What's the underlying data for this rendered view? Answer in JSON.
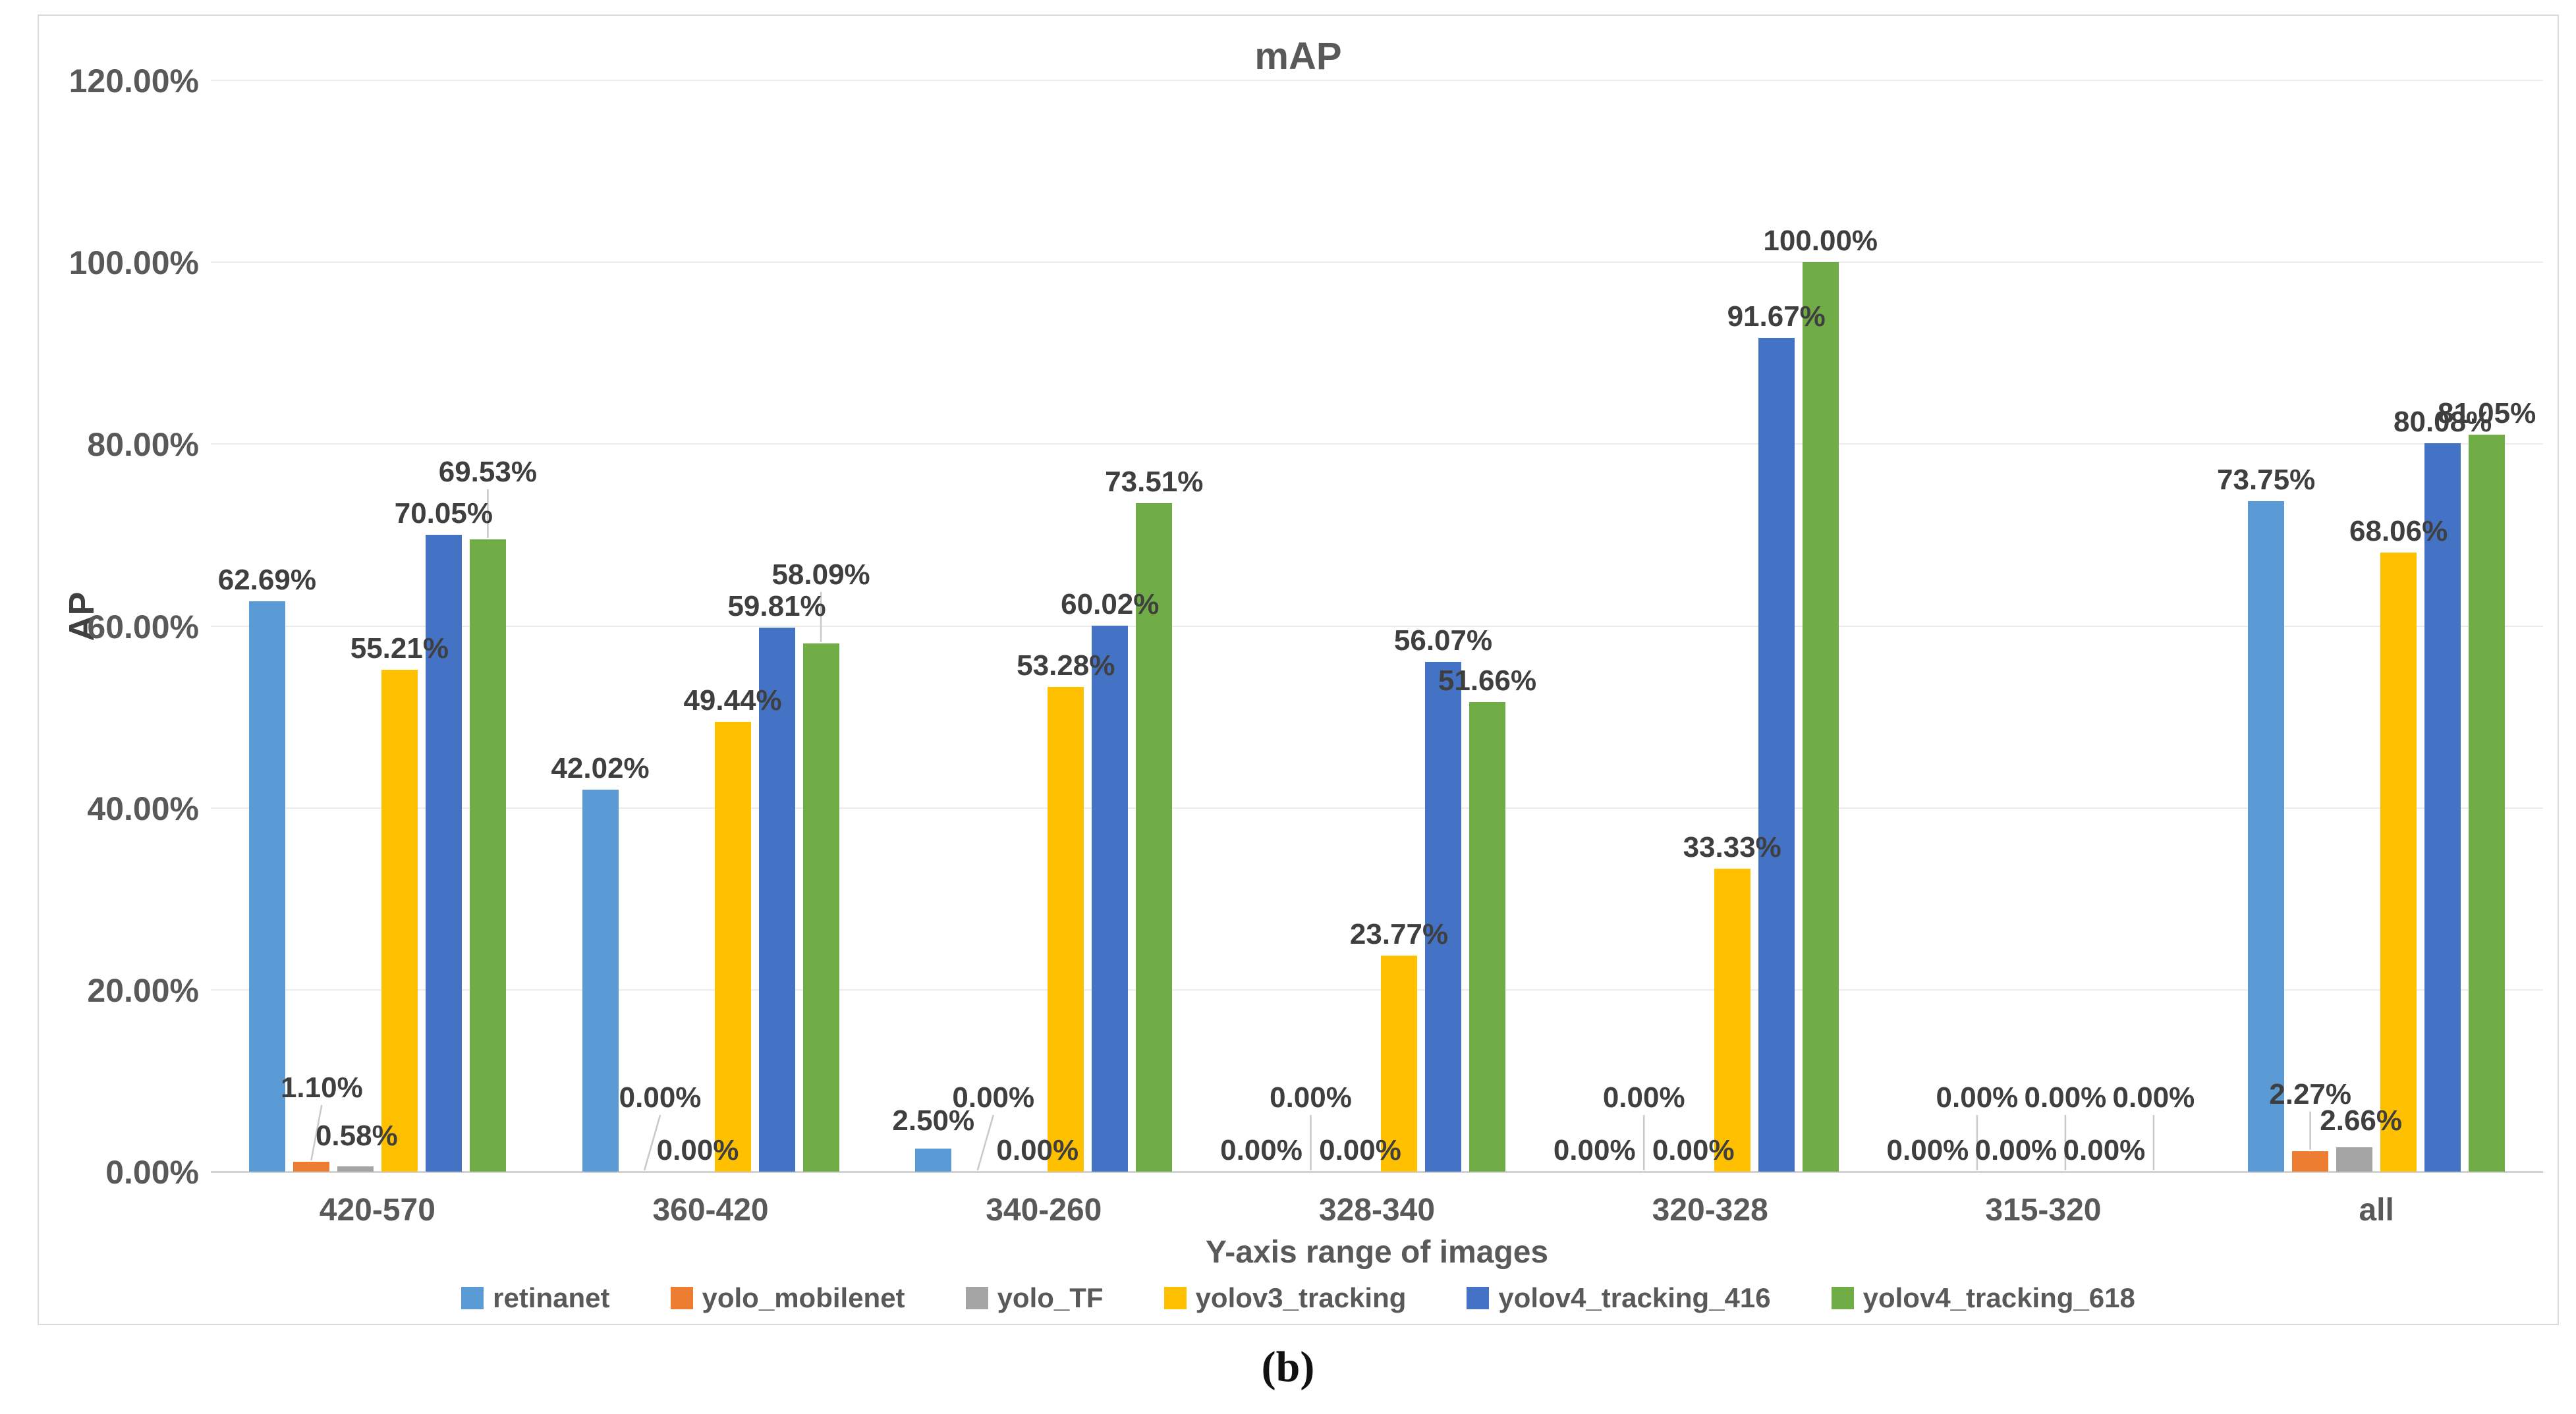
{
  "page": {
    "caption": "(b)"
  },
  "chart_data": {
    "type": "bar",
    "title": "mAP",
    "xlabel": "Y-axis range of images",
    "ylabel": "AP",
    "ylim": [
      0,
      120
    ],
    "grid": true,
    "legend_position": "bottom",
    "y_ticks": [
      {
        "v": 0,
        "label": "0.00%"
      },
      {
        "v": 20,
        "label": "20.00%"
      },
      {
        "v": 40,
        "label": "40.00%"
      },
      {
        "v": 60,
        "label": "60.00%"
      },
      {
        "v": 80,
        "label": "80.00%"
      },
      {
        "v": 100,
        "label": "100.00%"
      },
      {
        "v": 120,
        "label": "120.00%"
      }
    ],
    "categories": [
      "420-570",
      "360-420",
      "340-260",
      "328-340",
      "320-328",
      "315-320",
      "all"
    ],
    "series": [
      {
        "name": "retinanet",
        "color": "#5B9BD5",
        "values": [
          62.69,
          42.02,
          2.5,
          0.0,
          0.0,
          0.0,
          73.75
        ],
        "labels": [
          "62.69%",
          "42.02%",
          "2.50%",
          "0.00%",
          "0.00%",
          "0.00%",
          "73.75%"
        ]
      },
      {
        "name": "yolo_mobilenet",
        "color": "#ED7D31",
        "values": [
          1.1,
          0.0,
          0.0,
          0.0,
          0.0,
          0.0,
          2.27
        ],
        "labels": [
          "1.10%",
          "0.00%",
          "0.00%",
          "0.00%",
          "0.00%",
          "0.00%",
          "2.27%"
        ]
      },
      {
        "name": "yolo_TF",
        "color": "#A5A5A5",
        "values": [
          0.58,
          0.0,
          0.0,
          0.0,
          0.0,
          0.0,
          2.66
        ],
        "labels": [
          "0.58%",
          "0.00%",
          "0.00%",
          "0.00%",
          "0.00%",
          "0.00%",
          "2.66%"
        ]
      },
      {
        "name": "yolov3_tracking",
        "color": "#FFC000",
        "values": [
          55.21,
          49.44,
          53.28,
          23.77,
          33.33,
          0.0,
          68.06
        ],
        "labels": [
          "55.21%",
          "49.44%",
          "53.28%",
          "23.77%",
          "33.33%",
          "0.00%",
          "68.06%"
        ]
      },
      {
        "name": "yolov4_tracking_416",
        "color": "#4472C4",
        "values": [
          70.05,
          59.81,
          60.02,
          56.07,
          91.67,
          0.0,
          80.08
        ],
        "labels": [
          "70.05%",
          "59.81%",
          "60.02%",
          "56.07%",
          "91.67%",
          "0.00%",
          "80.08%"
        ]
      },
      {
        "name": "yolov4_tracking_618",
        "color": "#70AD47",
        "values": [
          69.53,
          58.09,
          73.51,
          51.66,
          100.0,
          0.0,
          81.05
        ],
        "labels": [
          "69.53%",
          "58.09%",
          "73.51%",
          "51.66%",
          "100.00%",
          "0.00%",
          "81.05%"
        ]
      }
    ],
    "label_layout": [
      [
        null,
        {
          "raise": 80,
          "dx": 16,
          "leader": true
        },
        {
          "raise": 14,
          "dx": 2
        },
        null,
        null,
        {
          "raise": 70,
          "dx": 0,
          "leader": true
        }
      ],
      [
        null,
        {
          "raise": 80,
          "dx": 24,
          "leader": true
        },
        {
          "raise": 0,
          "dx": 14
        },
        null,
        null,
        {
          "raise": 72,
          "dx": 0,
          "leader": true
        }
      ],
      [
        {
          "raise": 10,
          "dx": 0
        },
        {
          "raise": 80,
          "dx": 24,
          "leader": true
        },
        {
          "raise": 0,
          "dx": 24
        },
        null,
        null,
        null
      ],
      [
        {
          "raise": 0,
          "dx": -8
        },
        {
          "raise": 80,
          "dx": 0,
          "leader": true
        },
        {
          "raise": 0,
          "dx": 8
        },
        null,
        null,
        null
      ],
      [
        {
          "raise": 0,
          "dx": -8
        },
        {
          "raise": 80,
          "dx": 0,
          "leader": true
        },
        {
          "raise": 0,
          "dx": 8
        },
        null,
        null,
        null
      ],
      [
        {
          "raise": 0,
          "dx": -8
        },
        {
          "raise": 80,
          "dx": 0,
          "leader": true
        },
        {
          "raise": 0,
          "dx": -8
        },
        {
          "raise": 80,
          "dx": 0,
          "leader": true
        },
        {
          "raise": 0,
          "dx": -8
        },
        {
          "raise": 80,
          "dx": 0,
          "leader": true
        }
      ],
      [
        null,
        {
          "raise": 54,
          "dx": 0,
          "leader": true
        },
        {
          "raise": 8,
          "dx": 10
        },
        null,
        null,
        null
      ]
    ]
  }
}
